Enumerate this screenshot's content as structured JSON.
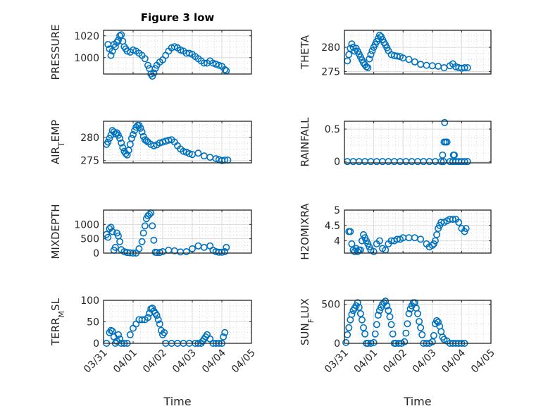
{
  "figure": {
    "title": "Figure 3 low",
    "marker_color": "#0072BD",
    "x_tick_labels": [
      "03/31",
      "04/01",
      "04/02",
      "04/03",
      "04/04",
      "04/05"
    ]
  },
  "chart_data": [
    {
      "type": "scatter",
      "title": "Figure 3 low",
      "ylabel": "PRESSURE",
      "xlabel": "",
      "x_unit": "days since 03/31",
      "xlim": [
        0,
        5
      ],
      "ylim": [
        985,
        1025
      ],
      "yticks": [
        1000,
        1020
      ],
      "ytick_labels": [
        "1000",
        "1020"
      ],
      "grid": true,
      "x": [
        0.15,
        0.2,
        0.25,
        0.3,
        0.35,
        0.4,
        0.45,
        0.5,
        0.55,
        0.6,
        0.65,
        0.7,
        0.75,
        0.8,
        0.9,
        1.0,
        1.1,
        1.2,
        1.3,
        1.4,
        1.5,
        1.55,
        1.6,
        1.65,
        1.7,
        1.75,
        1.8,
        1.9,
        2.0,
        2.1,
        2.2,
        2.3,
        2.4,
        2.5,
        2.6,
        2.7,
        2.8,
        2.9,
        3.0,
        3.1,
        3.2,
        3.3,
        3.4,
        3.5,
        3.6,
        3.7,
        3.8,
        3.9,
        4.0,
        4.1,
        4.15
      ],
      "y": [
        1012,
        1008,
        1002,
        1006,
        1012,
        1010,
        1014,
        1016,
        1020,
        1021,
        1015,
        1010,
        1008,
        1006,
        1005,
        1007,
        1006,
        1004,
        1002,
        999,
        993,
        990,
        985,
        983,
        986,
        990,
        993,
        996,
        998,
        1002,
        1006,
        1009,
        1010,
        1009,
        1007,
        1006,
        1004,
        1004,
        1003,
        1001,
        999,
        997,
        995,
        995,
        997,
        995,
        994,
        993,
        992,
        989,
        988
      ]
    },
    {
      "type": "scatter",
      "ylabel": "THETA",
      "xlabel": "",
      "xlim": [
        0,
        5
      ],
      "ylim": [
        274.5,
        283.5
      ],
      "yticks": [
        275,
        280
      ],
      "ytick_labels": [
        "275",
        "280"
      ],
      "grid": true,
      "x": [
        0.1,
        0.15,
        0.2,
        0.25,
        0.3,
        0.35,
        0.4,
        0.45,
        0.5,
        0.55,
        0.6,
        0.65,
        0.7,
        0.75,
        0.8,
        0.85,
        0.9,
        0.95,
        1.0,
        1.05,
        1.1,
        1.15,
        1.2,
        1.25,
        1.3,
        1.35,
        1.4,
        1.45,
        1.5,
        1.6,
        1.7,
        1.8,
        1.9,
        2.0,
        2.2,
        2.4,
        2.6,
        2.8,
        3.0,
        3.2,
        3.4,
        3.6,
        3.7,
        3.8,
        3.9,
        4.0,
        4.1,
        4.2
      ],
      "y": [
        277.2,
        278.5,
        279.8,
        280.7,
        280,
        279.2,
        279.8,
        279.2,
        278.6,
        278,
        277.4,
        276.8,
        276.4,
        276,
        275.8,
        277.6,
        278.5,
        279.3,
        280,
        280.6,
        281.2,
        281.8,
        282.5,
        282.2,
        281.6,
        281,
        280.5,
        279.9,
        279.3,
        278.5,
        278.3,
        278.2,
        278.1,
        277.8,
        277.5,
        277,
        276.5,
        276.3,
        276.2,
        276.1,
        275.8,
        276.2,
        276.6,
        276,
        275.8,
        275.7,
        275.8,
        275.8
      ]
    },
    {
      "type": "scatter",
      "ylabel": "AIR_TEMP",
      "xlabel": "",
      "xlim": [
        0,
        5
      ],
      "ylim": [
        274.5,
        283.5
      ],
      "yticks": [
        275,
        280
      ],
      "ytick_labels": [
        "275",
        "280"
      ],
      "grid": true,
      "x": [
        0.1,
        0.15,
        0.2,
        0.25,
        0.3,
        0.35,
        0.4,
        0.45,
        0.5,
        0.55,
        0.6,
        0.65,
        0.7,
        0.75,
        0.8,
        0.85,
        0.9,
        0.95,
        1.0,
        1.05,
        1.1,
        1.15,
        1.2,
        1.25,
        1.3,
        1.35,
        1.4,
        1.45,
        1.5,
        1.6,
        1.7,
        1.8,
        1.9,
        2.0,
        2.1,
        2.2,
        2.3,
        2.4,
        2.5,
        2.6,
        2.7,
        2.8,
        2.9,
        3.0,
        3.2,
        3.4,
        3.6,
        3.8,
        3.9,
        4.0,
        4.1,
        4.2
      ],
      "y": [
        278.5,
        279,
        279.8,
        280.5,
        281.5,
        281.2,
        280.8,
        281,
        280.5,
        279.8,
        278.8,
        277.8,
        277,
        276.5,
        276.2,
        277.2,
        278.5,
        279.8,
        280.6,
        281.5,
        282.2,
        282.6,
        282.6,
        282,
        281.2,
        280.2,
        279.5,
        279.3,
        279,
        278.5,
        278.2,
        278.4,
        278.8,
        279,
        279.2,
        279.4,
        279.5,
        279,
        278.2,
        277.5,
        277,
        276.8,
        276.5,
        276.3,
        276.6,
        276,
        275.7,
        275.4,
        275.2,
        275,
        275.1,
        275.1
      ]
    },
    {
      "type": "scatter",
      "ylabel": "RAINFALL",
      "xlabel": "",
      "xlim": [
        0,
        5
      ],
      "ylim": [
        -0.02,
        0.62
      ],
      "yticks": [
        0,
        0.5
      ],
      "ytick_labels": [
        "0",
        "0.5"
      ],
      "grid": true,
      "x": [
        0.1,
        0.3,
        0.5,
        0.7,
        0.9,
        1.1,
        1.3,
        1.5,
        1.7,
        1.9,
        2.1,
        2.3,
        2.5,
        2.7,
        2.9,
        3.1,
        3.3,
        3.35,
        3.38,
        3.4,
        3.42,
        3.45,
        3.5,
        3.6,
        3.7,
        3.72,
        3.75,
        3.8,
        3.9,
        4.0,
        4.1,
        4.2
      ],
      "y": [
        0,
        0,
        0,
        0,
        0,
        0,
        0,
        0,
        0,
        0,
        0,
        0,
        0,
        0,
        0,
        0,
        0,
        0.1,
        0,
        0.3,
        0.6,
        0.3,
        0.3,
        0,
        0,
        0.1,
        0.1,
        0,
        0,
        0,
        0,
        0
      ]
    },
    {
      "type": "scatter",
      "ylabel": "MIXDEPTH",
      "xlabel": "",
      "xlim": [
        0,
        5
      ],
      "ylim": [
        0,
        1500
      ],
      "yticks": [
        0,
        500,
        1000
      ],
      "ytick_labels": [
        "0",
        "500",
        "1000"
      ],
      "grid": true,
      "x": [
        0.1,
        0.15,
        0.2,
        0.25,
        0.3,
        0.35,
        0.4,
        0.45,
        0.5,
        0.55,
        0.6,
        0.7,
        0.8,
        0.9,
        1.0,
        1.1,
        1.2,
        1.3,
        1.35,
        1.4,
        1.45,
        1.5,
        1.55,
        1.6,
        1.65,
        1.7,
        1.75,
        1.8,
        1.9,
        2.0,
        2.2,
        2.4,
        2.6,
        2.8,
        3.0,
        3.2,
        3.4,
        3.6,
        3.7,
        3.8,
        3.9,
        4.0,
        4.1,
        4.15
      ],
      "y": [
        650,
        550,
        850,
        900,
        750,
        100,
        200,
        700,
        600,
        400,
        120,
        50,
        20,
        10,
        0,
        0,
        150,
        400,
        700,
        950,
        1200,
        1300,
        1350,
        1400,
        950,
        450,
        30,
        20,
        20,
        50,
        100,
        80,
        40,
        50,
        150,
        250,
        200,
        250,
        100,
        50,
        30,
        30,
        50,
        200
      ]
    },
    {
      "type": "scatter",
      "ylabel": "H2OMIXRA",
      "xlabel": "",
      "xlim": [
        0,
        5
      ],
      "ylim": [
        3.6,
        5
      ],
      "yticks": [
        4,
        4.5,
        5
      ],
      "ytick_labels": [
        "4",
        "4.5",
        "5"
      ],
      "grid": true,
      "x": [
        0.15,
        0.2,
        0.25,
        0.3,
        0.35,
        0.4,
        0.45,
        0.5,
        0.55,
        0.6,
        0.65,
        0.7,
        0.75,
        0.8,
        0.85,
        0.9,
        1.0,
        1.1,
        1.2,
        1.3,
        1.4,
        1.5,
        1.6,
        1.7,
        1.8,
        1.9,
        2.0,
        2.2,
        2.4,
        2.6,
        2.8,
        2.9,
        3.0,
        3.05,
        3.1,
        3.15,
        3.2,
        3.25,
        3.3,
        3.4,
        3.5,
        3.6,
        3.7,
        3.8,
        3.9,
        4.0,
        4.1,
        4.15
      ],
      "y": [
        4.3,
        4.3,
        3.9,
        3.7,
        3.65,
        3.75,
        3.65,
        3.7,
        3.7,
        4,
        4.2,
        4.1,
        4,
        3.9,
        3.8,
        3.7,
        3.65,
        3.9,
        4,
        3.75,
        3.7,
        3.9,
        4,
        4,
        4.05,
        4.05,
        4.1,
        4.1,
        4.1,
        4.05,
        3.9,
        3.8,
        3.85,
        3.9,
        4,
        4.2,
        4.4,
        4.5,
        4.6,
        4.6,
        4.65,
        4.7,
        4.7,
        4.7,
        4.6,
        4.4,
        4.3,
        4.4
      ]
    },
    {
      "type": "scatter",
      "ylabel": "TERR_MSL",
      "xlabel": "Time",
      "xlim": [
        0,
        5
      ],
      "ylim": [
        0,
        100
      ],
      "yticks": [
        0,
        50,
        100
      ],
      "ytick_labels": [
        "0",
        "50",
        "100"
      ],
      "grid": true,
      "x": [
        0.1,
        0.2,
        0.25,
        0.3,
        0.35,
        0.4,
        0.45,
        0.5,
        0.55,
        0.6,
        0.7,
        0.8,
        0.9,
        1.0,
        1.1,
        1.2,
        1.3,
        1.4,
        1.5,
        1.55,
        1.6,
        1.65,
        1.7,
        1.75,
        1.8,
        1.85,
        1.9,
        1.95,
        2.0,
        2.05,
        2.1,
        2.3,
        2.5,
        2.7,
        2.9,
        3.1,
        3.2,
        3.3,
        3.35,
        3.4,
        3.45,
        3.5,
        3.6,
        3.7,
        3.8,
        3.9,
        4.0,
        4.05,
        4.1
      ],
      "y": [
        0,
        25,
        30,
        28,
        15,
        0,
        5,
        20,
        10,
        0,
        0,
        0,
        20,
        35,
        45,
        55,
        55,
        55,
        60,
        70,
        80,
        82,
        75,
        70,
        65,
        55,
        45,
        30,
        20,
        25,
        0,
        0,
        0,
        0,
        0,
        0,
        0,
        0,
        5,
        10,
        15,
        20,
        10,
        0,
        0,
        0,
        0,
        15,
        25
      ]
    },
    {
      "type": "scatter",
      "ylabel": "SUN_FLUX",
      "xlabel": "Time",
      "xlim": [
        0,
        5
      ],
      "ylim": [
        0,
        550
      ],
      "yticks": [
        0,
        500
      ],
      "ytick_labels": [
        "0",
        "500"
      ],
      "grid": true,
      "x": [
        0.05,
        0.1,
        0.15,
        0.2,
        0.25,
        0.3,
        0.35,
        0.4,
        0.45,
        0.5,
        0.55,
        0.6,
        0.65,
        0.7,
        0.75,
        0.8,
        0.9,
        1.0,
        1.05,
        1.1,
        1.15,
        1.2,
        1.25,
        1.3,
        1.35,
        1.4,
        1.45,
        1.5,
        1.55,
        1.6,
        1.65,
        1.7,
        1.75,
        1.85,
        1.95,
        2.05,
        2.1,
        2.15,
        2.2,
        2.25,
        2.3,
        2.35,
        2.4,
        2.45,
        2.5,
        2.55,
        2.6,
        2.65,
        2.7,
        2.8,
        2.9,
        3.0,
        3.05,
        3.1,
        3.15,
        3.2,
        3.25,
        3.3,
        3.35,
        3.4,
        3.5,
        3.6,
        3.7,
        3.8,
        3.9,
        4.0,
        4.1
      ],
      "y": [
        10,
        110,
        200,
        300,
        370,
        420,
        450,
        480,
        520,
        460,
        380,
        300,
        200,
        120,
        0,
        0,
        0,
        10,
        120,
        240,
        360,
        420,
        460,
        500,
        520,
        540,
        480,
        420,
        340,
        240,
        120,
        0,
        0,
        0,
        0,
        20,
        130,
        250,
        380,
        440,
        480,
        520,
        520,
        450,
        380,
        280,
        200,
        110,
        0,
        0,
        0,
        20,
        100,
        250,
        290,
        270,
        220,
        150,
        80,
        50,
        30,
        0,
        0,
        0,
        0,
        0,
        0
      ]
    }
  ]
}
